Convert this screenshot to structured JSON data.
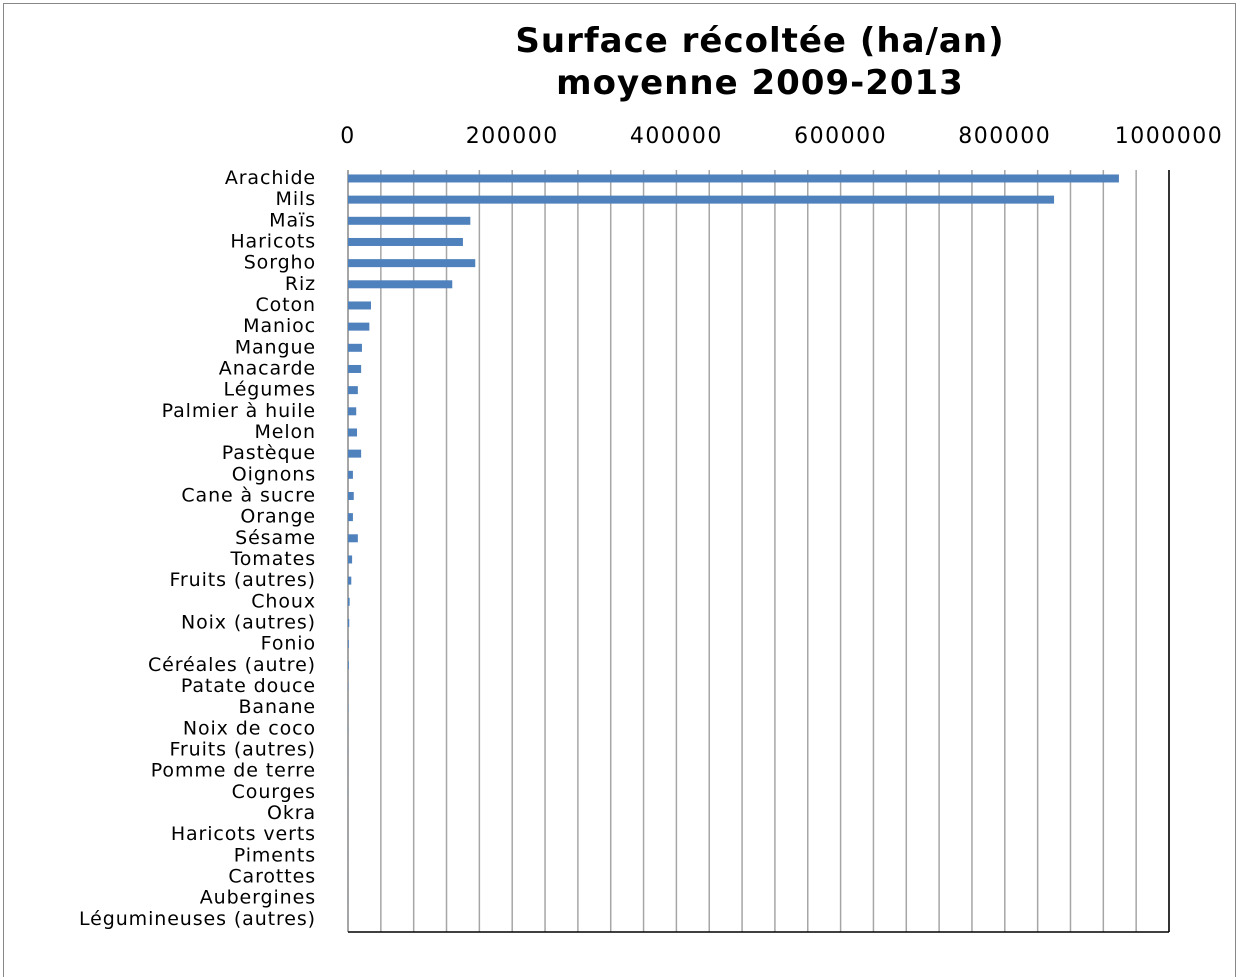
{
  "chart_data": {
    "type": "barh",
    "title": "Surface récoltée (ha/an) moyenne 2009-2013",
    "categories": [
      "Arachide",
      "Mils",
      "Maïs",
      "Haricots",
      "Sorgho",
      "Riz",
      "Coton",
      "Manioc",
      "Mangue",
      "Anacarde",
      "Légumes",
      "Palmier à huile",
      "Melon",
      "Pastèque",
      "Oignons",
      "Cane à sucre",
      "Orange",
      "Sésame",
      "Tomates",
      "Fruits (autres)",
      "Choux",
      "Noix (autres)",
      "Fonio",
      "Céréales (autre)",
      "Patate douce",
      "Banane",
      "Noix de coco",
      "Fruits (autres)",
      "Pomme de terre",
      "Courges",
      "Okra",
      "Haricots verts",
      "Piments",
      "Carottes",
      "Aubergines",
      "Légumineuses (autres)"
    ],
    "values": [
      939000,
      860000,
      149000,
      140000,
      155000,
      127000,
      28000,
      26000,
      17000,
      16000,
      12000,
      10000,
      11000,
      16000,
      6000,
      7000,
      6000,
      12000,
      5000,
      4000,
      2000,
      1500,
      1000,
      1000,
      400,
      300,
      300,
      200,
      200,
      200,
      100,
      100,
      100,
      100,
      100,
      100
    ],
    "color": "#4f81bd",
    "xlim": [
      0,
      1000000
    ],
    "xticks": [
      0,
      200000,
      400000,
      600000,
      800000,
      1000000
    ],
    "xgrid": [
      40000,
      80000,
      120000,
      160000,
      200000,
      240000,
      280000,
      320000,
      360000,
      400000,
      440000,
      480000,
      520000,
      560000,
      600000,
      640000,
      680000,
      720000,
      760000,
      800000,
      840000,
      880000,
      920000,
      960000,
      1000000
    ],
    "grid": true
  }
}
